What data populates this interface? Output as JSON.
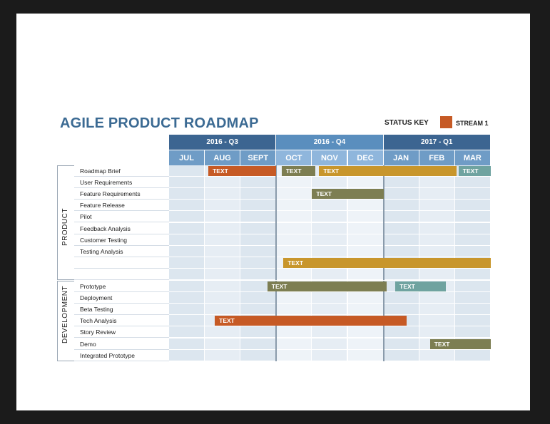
{
  "title": "AGILE PRODUCT ROADMAP",
  "status_key": {
    "label": "STATUS KEY",
    "stream": {
      "label": "STREAM 1",
      "color": "#c65a25"
    }
  },
  "quarters": [
    {
      "label": "2016 - Q3",
      "color": "#3c6591"
    },
    {
      "label": "2016 - Q4",
      "color": "#5a8ebe"
    },
    {
      "label": "2017 - Q1",
      "color": "#3c6591"
    }
  ],
  "months": [
    "JUL",
    "AUG",
    "SEPT",
    "OCT",
    "NOV",
    "DEC",
    "JAN",
    "FEB",
    "MAR"
  ],
  "sections": [
    {
      "label": "PRODUCT",
      "rows": [
        "Roadmap Brief",
        "User Requirements",
        "Feature Requirements",
        "Feature Release",
        "Pilot",
        "Feedback Analysis",
        "Customer Testing",
        "Testing Analysis",
        "",
        ""
      ]
    },
    {
      "label": "DEVELOPMENT",
      "rows": [
        "Prototype",
        "Deployment",
        "Beta Testing",
        "Tech Analysis",
        "Story Review",
        "Demo",
        "Integrated Prototype"
      ]
    }
  ],
  "bar_colors": {
    "orange": "#c65a25",
    "olive": "#7d7e52",
    "gold": "#c8962c",
    "teal": "#6fa3a0"
  },
  "bars": [
    {
      "section": 0,
      "row": 0,
      "start": 1.1,
      "end": 3.0,
      "label": "TEXT",
      "color": "orange"
    },
    {
      "section": 0,
      "row": 0,
      "start": 3.15,
      "end": 4.1,
      "label": "TEXT",
      "color": "olive"
    },
    {
      "section": 0,
      "row": 0,
      "start": 4.2,
      "end": 8.05,
      "label": "TEXT",
      "color": "gold"
    },
    {
      "section": 0,
      "row": 0,
      "start": 8.1,
      "end": 9.0,
      "label": "TEXT",
      "color": "teal"
    },
    {
      "section": 0,
      "row": 2,
      "start": 4.0,
      "end": 6.0,
      "label": "TEXT",
      "color": "olive"
    },
    {
      "section": 0,
      "row": 8,
      "start": 3.2,
      "end": 9.0,
      "label": "TEXT",
      "color": "gold"
    },
    {
      "section": 1,
      "row": 0,
      "start": 2.75,
      "end": 6.08,
      "label": "TEXT",
      "color": "olive"
    },
    {
      "section": 1,
      "row": 0,
      "start": 6.33,
      "end": 7.75,
      "label": "TEXT",
      "color": "teal"
    },
    {
      "section": 1,
      "row": 3,
      "start": 1.28,
      "end": 6.65,
      "label": "TEXT",
      "color": "orange"
    },
    {
      "section": 1,
      "row": 5,
      "start": 7.3,
      "end": 9.0,
      "label": "TEXT",
      "color": "olive"
    }
  ]
}
